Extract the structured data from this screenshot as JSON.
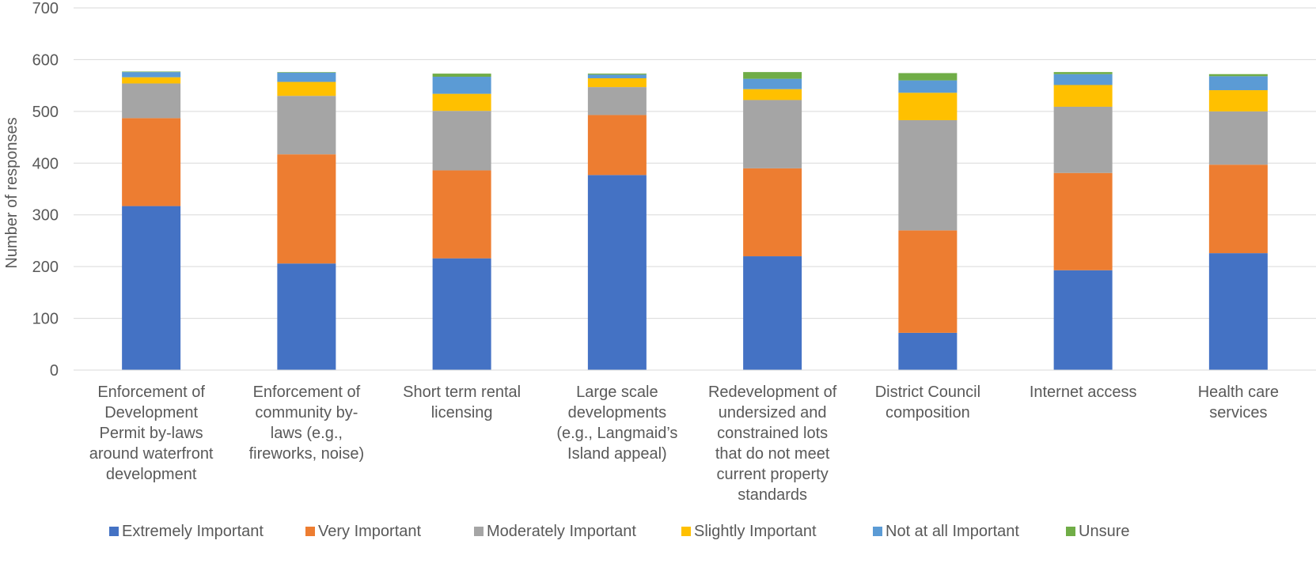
{
  "chart_data": {
    "type": "bar",
    "stacked": true,
    "title": "",
    "xlabel": "",
    "ylabel": "Number of responses",
    "ylim": [
      0,
      700
    ],
    "yticks": [
      0,
      100,
      200,
      300,
      400,
      500,
      600,
      700
    ],
    "grid": true,
    "legend_position": "bottom",
    "categories": [
      [
        "Enforcement of",
        "Development",
        "Permit by-laws",
        "around waterfront",
        "development"
      ],
      [
        "Enforcement of",
        "community by-",
        "laws (e.g.,",
        "fireworks, noise)"
      ],
      [
        "Short term rental",
        "licensing"
      ],
      [
        "Large scale",
        "developments",
        "(e.g., Langmaid’s",
        "Island appeal)"
      ],
      [
        "Redevelopment of",
        "undersized and",
        "constrained lots",
        "that do not meet",
        "current property",
        "standards"
      ],
      [
        "District Council",
        "composition"
      ],
      [
        "Internet access"
      ],
      [
        "Health care",
        "services"
      ]
    ],
    "series": [
      {
        "name": "Extremely Important",
        "color": "#4472C4",
        "values": [
          317,
          206,
          216,
          377,
          220,
          72,
          193,
          226
        ]
      },
      {
        "name": "Very Important",
        "color": "#ED7D31",
        "values": [
          170,
          211,
          170,
          116,
          170,
          198,
          188,
          171
        ]
      },
      {
        "name": "Moderately Important",
        "color": "#A5A5A5",
        "values": [
          67,
          113,
          115,
          54,
          132,
          213,
          128,
          103
        ]
      },
      {
        "name": "Slightly Important",
        "color": "#FFC000",
        "values": [
          12,
          27,
          33,
          17,
          21,
          53,
          42,
          41
        ]
      },
      {
        "name": "Not at all Important",
        "color": "#5B9BD5",
        "values": [
          10,
          18,
          33,
          7,
          20,
          24,
          21,
          27
        ]
      },
      {
        "name": "Unsure",
        "color": "#70AD47",
        "values": [
          1,
          1,
          6,
          2,
          13,
          14,
          4,
          4
        ]
      }
    ]
  }
}
